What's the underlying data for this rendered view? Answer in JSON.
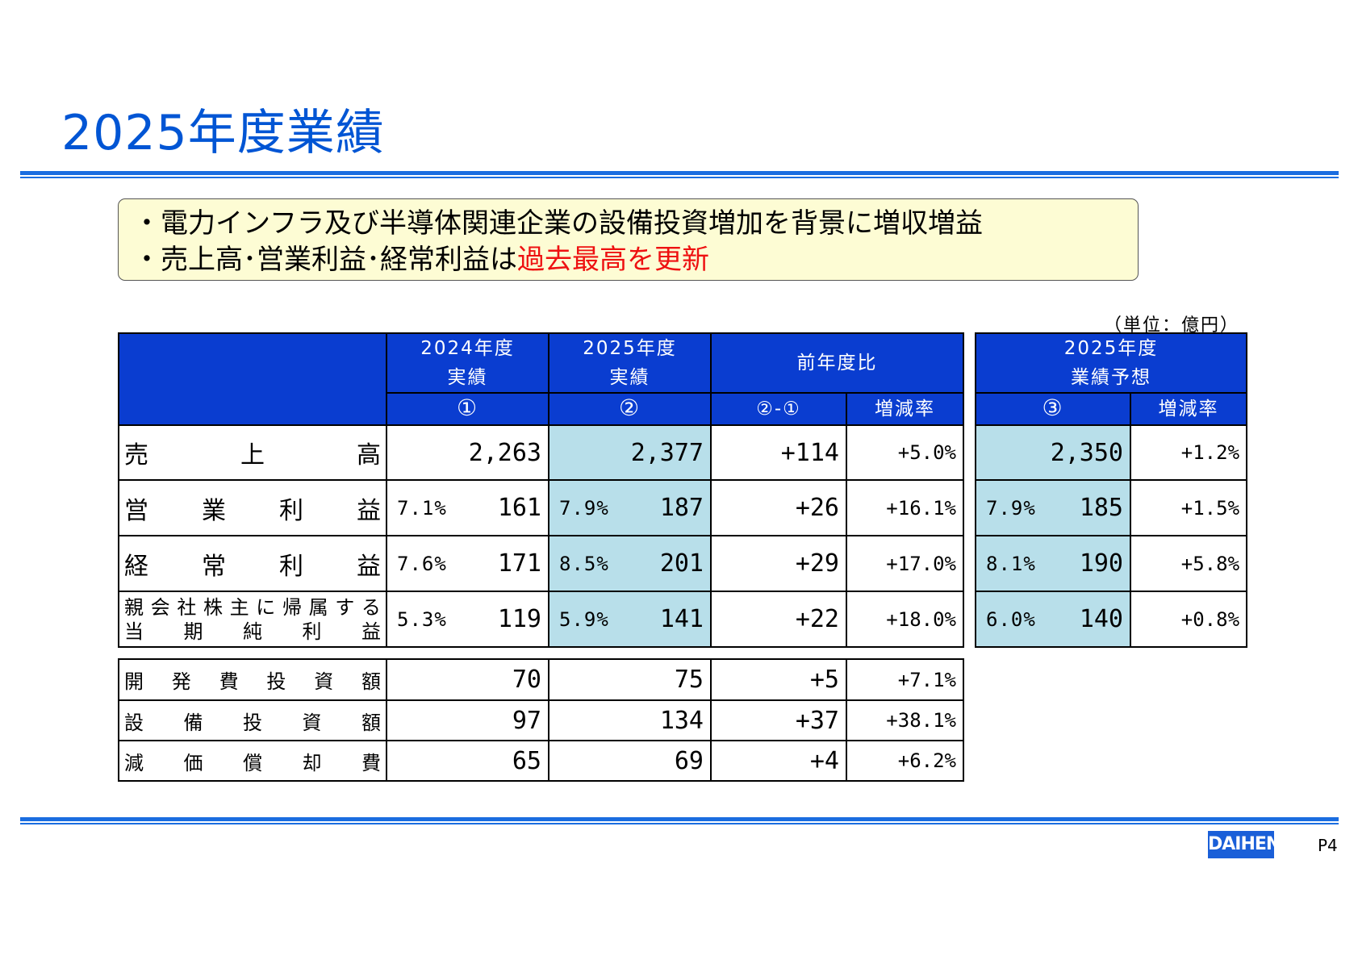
{
  "title": "2025年度業績",
  "summary": {
    "line1": "・電力インフラ及び半導体関連企業の設備投資増加を背景に増収増益",
    "line2_black": "・売上高･営業利益･経常利益は",
    "line2_red": "過去最高を更新"
  },
  "unit": "（単位：億円）",
  "headers": {
    "fy2024_l1": "2024年度",
    "fy2024_l2": "実績",
    "fy2024_mark": "①",
    "fy2025_l1": "2025年度",
    "fy2025_l2": "実績",
    "fy2025_mark": "②",
    "yoy": "前年度比",
    "yoy_diff": "②-①",
    "yoy_rate": "増減率",
    "fc_l1": "2025年度",
    "fc_l2": "業績予想",
    "fc_mark": "③",
    "fc_rate": "増減率"
  },
  "rows": [
    {
      "label": [
        "売",
        "上",
        "高"
      ],
      "m24": "",
      "v24": "2,263",
      "m25": "",
      "v25": "2,377",
      "diff": "+114",
      "rate": "+5.0%",
      "mfc": "",
      "vfc": "2,350",
      "ratefc": "+1.2%"
    },
    {
      "label": [
        "営",
        "業",
        "利",
        "益"
      ],
      "m24": "7.1%",
      "v24": "161",
      "m25": "7.9%",
      "v25": "187",
      "diff": "+26",
      "rate": "+16.1%",
      "mfc": "7.9%",
      "vfc": "185",
      "ratefc": "+1.5%"
    },
    {
      "label": [
        "経",
        "常",
        "利",
        "益"
      ],
      "m24": "7.6%",
      "v24": "171",
      "m25": "8.5%",
      "v25": "201",
      "diff": "+29",
      "rate": "+17.0%",
      "mfc": "8.1%",
      "vfc": "190",
      "ratefc": "+5.8%"
    },
    {
      "label2a": [
        "親",
        "会",
        "社",
        "株",
        "主",
        "に",
        "帰",
        "属",
        "す",
        "る"
      ],
      "label2b": [
        "当",
        "期",
        "純",
        "利",
        "益"
      ],
      "m24": "5.3%",
      "v24": "119",
      "m25": "5.9%",
      "v25": "141",
      "diff": "+22",
      "rate": "+18.0%",
      "mfc": "6.0%",
      "vfc": "140",
      "ratefc": "+0.8%"
    }
  ],
  "rows2": [
    {
      "label": [
        "開",
        "発",
        "費",
        "投",
        "資",
        "額"
      ],
      "v24": "70",
      "v25": "75",
      "diff": "+5",
      "rate": "+7.1%"
    },
    {
      "label": [
        "設",
        "備",
        "投",
        "資",
        "額"
      ],
      "v24": "97",
      "v25": "134",
      "diff": "+37",
      "rate": "+38.1%"
    },
    {
      "label": [
        "減",
        "価",
        "償",
        "却",
        "費"
      ],
      "v24": "65",
      "v25": "69",
      "diff": "+4",
      "rate": "+6.2%"
    }
  ],
  "logo": "DAIHEN",
  "page": "P4",
  "colors": {
    "title": "#0055d4",
    "header_bg": "#0a3dd0",
    "shade": "#b8dfea",
    "summary_bg": "#fdfcd4",
    "highlight": "#ee1111"
  }
}
